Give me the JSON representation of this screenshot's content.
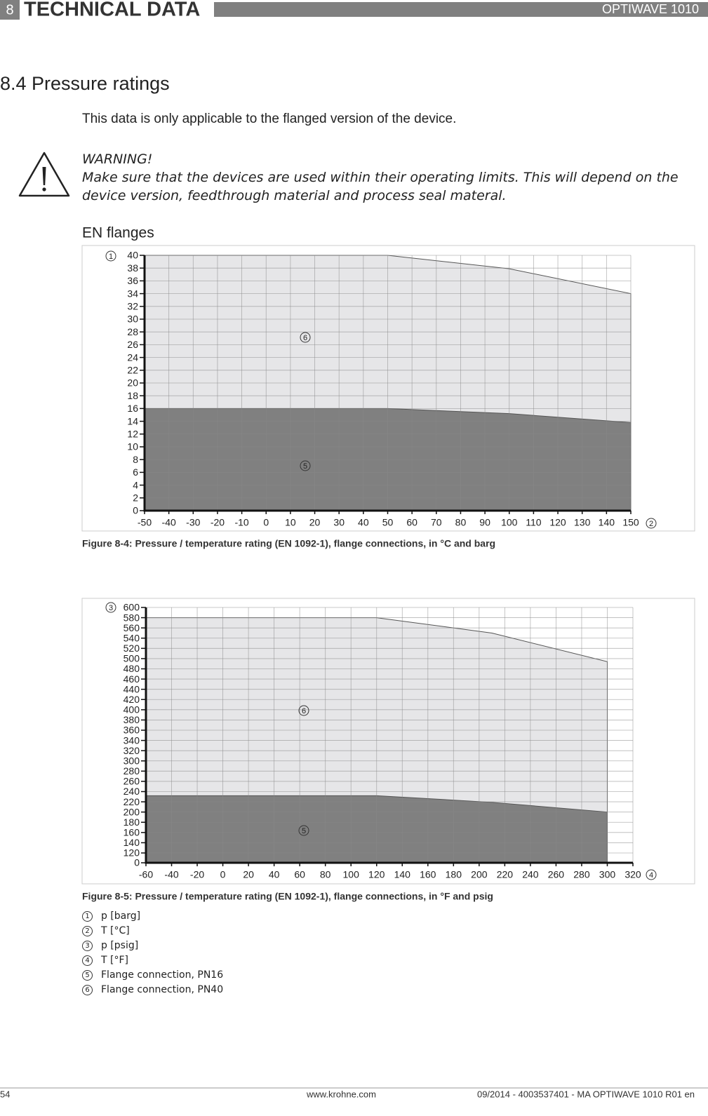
{
  "header": {
    "section_number": "8",
    "section_title": "TECHNICAL DATA",
    "product": "OPTIWAVE 1010"
  },
  "section": {
    "heading": "8.4  Pressure ratings",
    "intro": "This data is only applicable to the flanged version of the device.",
    "warning_title": "WARNING!",
    "warning_text": "Make sure that the devices are used within their operating limits. This will depend on the device version, feedthrough material and process seal materal.",
    "subheading": "EN flanges"
  },
  "chart_data": [
    {
      "type": "area",
      "y_axis_marker": "1",
      "x_axis_marker": "2",
      "caption": "Figure 8-4: Pressure / temperature rating (EN 1092-1), flange connections, in °C and barg",
      "x": [
        -50,
        50,
        100,
        150
      ],
      "series": [
        {
          "label": "6",
          "color": "#e6e6e8",
          "values": [
            40,
            40,
            37.9,
            34
          ]
        },
        {
          "label": "5",
          "color": "#808080",
          "values": [
            16,
            16,
            15.2,
            13.8
          ]
        }
      ],
      "xlim": [
        -50,
        150
      ],
      "xticks": [
        -50,
        -40,
        -30,
        -20,
        -10,
        0,
        10,
        20,
        30,
        40,
        50,
        60,
        70,
        80,
        90,
        100,
        110,
        120,
        130,
        140,
        150
      ],
      "ylim": [
        0,
        40
      ],
      "yticks": [
        0,
        2,
        4,
        6,
        8,
        10,
        12,
        14,
        16,
        18,
        20,
        22,
        24,
        26,
        28,
        30,
        32,
        34,
        36,
        38,
        40
      ],
      "grid": true
    },
    {
      "type": "area",
      "y_axis_marker": "3",
      "x_axis_marker": "4",
      "caption": "Figure 8-5: Pressure / temperature rating (EN 1092-1), flange connections, in °F and psig",
      "x": [
        -60,
        120,
        210,
        300
      ],
      "series": [
        {
          "label": "6",
          "color": "#e6e6e8",
          "values": [
            580,
            580,
            550,
            494
          ]
        },
        {
          "label": "5",
          "color": "#808080",
          "values": [
            232,
            232,
            219,
            200
          ]
        }
      ],
      "xlim": [
        -60,
        320
      ],
      "xticks": [
        -60,
        -40,
        -20,
        0,
        20,
        40,
        60,
        80,
        100,
        120,
        140,
        160,
        180,
        200,
        220,
        240,
        260,
        280,
        300,
        320
      ],
      "ylim": [
        0,
        600
      ],
      "y_break": [
        0,
        120
      ],
      "yticks": [
        0,
        120,
        140,
        160,
        180,
        200,
        220,
        240,
        260,
        280,
        300,
        320,
        340,
        360,
        380,
        400,
        420,
        440,
        460,
        480,
        500,
        520,
        540,
        560,
        580,
        600
      ],
      "grid": true
    }
  ],
  "key": [
    {
      "marker": "1",
      "text": "p [barg]"
    },
    {
      "marker": "2",
      "text": "T [°C]"
    },
    {
      "marker": "3",
      "text": "p [psig]"
    },
    {
      "marker": "4",
      "text": "T [°F]"
    },
    {
      "marker": "5",
      "text": "Flange connection, PN16"
    },
    {
      "marker": "6",
      "text": "Flange connection, PN40"
    }
  ],
  "footer": {
    "page": "54",
    "url": "www.krohne.com",
    "document": "09/2014 - 4003537401 - MA OPTIWAVE 1010 R01 en"
  }
}
